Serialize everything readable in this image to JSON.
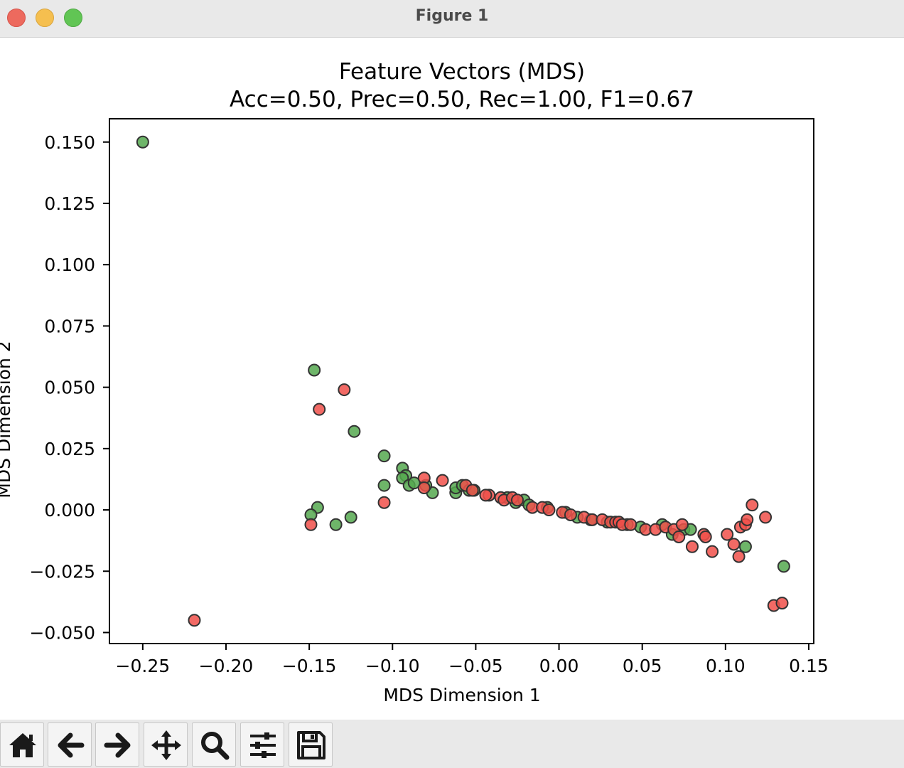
{
  "window": {
    "title": "Figure 1"
  },
  "toolbar": {
    "buttons": [
      {
        "name": "home-button",
        "icon": "home-icon"
      },
      {
        "name": "back-button",
        "icon": "arrow-left-icon"
      },
      {
        "name": "forward-button",
        "icon": "arrow-right-icon"
      },
      {
        "name": "pan-button",
        "icon": "move-icon"
      },
      {
        "name": "zoom-button",
        "icon": "search-icon"
      },
      {
        "name": "configure-subplots-button",
        "icon": "sliders-icon"
      },
      {
        "name": "save-button",
        "icon": "save-icon"
      }
    ]
  },
  "chart_data": {
    "type": "scatter",
    "title": "Feature Vectors (MDS)",
    "subtitle": "Acc=0.50, Prec=0.50, Rec=1.00, F1=0.67",
    "xlabel": "MDS Dimension 1",
    "ylabel": "MDS Dimension 2",
    "xlim": [
      -0.27,
      0.153
    ],
    "ylim": [
      -0.0545,
      0.1595
    ],
    "xticks": [
      -0.25,
      -0.2,
      -0.15,
      -0.1,
      -0.05,
      0.0,
      0.05,
      0.1,
      0.15
    ],
    "xtick_labels": [
      "−0.25",
      "−0.20",
      "−0.15",
      "−0.10",
      "−0.05",
      "0.00",
      "0.05",
      "0.10",
      "0.15"
    ],
    "yticks": [
      -0.05,
      -0.025,
      0.0,
      0.025,
      0.05,
      0.075,
      0.1,
      0.125,
      0.15
    ],
    "ytick_labels": [
      "−0.050",
      "−0.025",
      "0.000",
      "0.025",
      "0.050",
      "0.075",
      "0.100",
      "0.125",
      "0.150"
    ],
    "grid": false,
    "colors": {
      "green": "#55a84f",
      "red": "#f0504a",
      "edge": "#333333"
    },
    "series": [
      {
        "color": "green",
        "points": [
          [
            -0.25,
            0.15
          ],
          [
            -0.147,
            0.057
          ],
          [
            -0.123,
            0.032
          ],
          [
            -0.105,
            0.022
          ],
          [
            -0.094,
            0.017
          ],
          [
            -0.092,
            0.014
          ],
          [
            -0.094,
            0.013
          ],
          [
            -0.09,
            0.01
          ],
          [
            -0.087,
            0.011
          ],
          [
            -0.105,
            0.01
          ],
          [
            -0.076,
            0.007
          ],
          [
            -0.08,
            0.01
          ],
          [
            -0.062,
            0.007
          ],
          [
            -0.062,
            0.009
          ],
          [
            -0.058,
            0.01
          ],
          [
            -0.054,
            0.008
          ],
          [
            -0.051,
            0.008
          ],
          [
            -0.031,
            0.005
          ],
          [
            -0.026,
            0.003
          ],
          [
            -0.021,
            0.004
          ],
          [
            -0.018,
            0.002
          ],
          [
            -0.007,
            0.001
          ],
          [
            0.004,
            -0.001
          ],
          [
            0.011,
            -0.003
          ],
          [
            0.019,
            -0.004
          ],
          [
            0.029,
            -0.005
          ],
          [
            0.041,
            -0.006
          ],
          [
            0.049,
            -0.007
          ],
          [
            0.062,
            -0.006
          ],
          [
            0.068,
            -0.01
          ],
          [
            0.075,
            -0.008
          ],
          [
            0.079,
            -0.008
          ],
          [
            -0.145,
            0.001
          ],
          [
            -0.149,
            -0.002
          ],
          [
            -0.134,
            -0.006
          ],
          [
            -0.125,
            -0.003
          ],
          [
            0.112,
            -0.015
          ],
          [
            0.135,
            -0.023
          ]
        ]
      },
      {
        "color": "red",
        "points": [
          [
            -0.219,
            -0.045
          ],
          [
            -0.144,
            0.041
          ],
          [
            -0.129,
            0.049
          ],
          [
            -0.105,
            0.003
          ],
          [
            -0.149,
            -0.006
          ],
          [
            -0.081,
            0.013
          ],
          [
            -0.081,
            0.009
          ],
          [
            -0.07,
            0.012
          ],
          [
            -0.056,
            0.01
          ],
          [
            -0.052,
            0.008
          ],
          [
            -0.042,
            0.006
          ],
          [
            -0.044,
            0.006
          ],
          [
            -0.035,
            0.005
          ],
          [
            -0.033,
            0.004
          ],
          [
            -0.028,
            0.005
          ],
          [
            -0.025,
            0.004
          ],
          [
            -0.016,
            0.001
          ],
          [
            -0.01,
            0.001
          ],
          [
            -0.006,
            0.0
          ],
          [
            0.002,
            -0.001
          ],
          [
            0.007,
            -0.002
          ],
          [
            0.015,
            -0.003
          ],
          [
            0.02,
            -0.004
          ],
          [
            0.026,
            -0.004
          ],
          [
            0.031,
            -0.005
          ],
          [
            0.034,
            -0.005
          ],
          [
            0.036,
            -0.005
          ],
          [
            0.038,
            -0.006
          ],
          [
            0.043,
            -0.006
          ],
          [
            0.052,
            -0.008
          ],
          [
            0.058,
            -0.008
          ],
          [
            0.064,
            -0.007
          ],
          [
            0.069,
            -0.008
          ],
          [
            0.072,
            -0.011
          ],
          [
            0.08,
            -0.015
          ],
          [
            0.087,
            -0.01
          ],
          [
            0.088,
            -0.011
          ],
          [
            0.092,
            -0.017
          ],
          [
            0.101,
            -0.01
          ],
          [
            0.105,
            -0.014
          ],
          [
            0.108,
            -0.019
          ],
          [
            0.109,
            -0.007
          ],
          [
            0.112,
            -0.006
          ],
          [
            0.113,
            -0.004
          ],
          [
            0.116,
            0.002
          ],
          [
            0.124,
            -0.003
          ],
          [
            0.129,
            -0.039
          ],
          [
            0.134,
            -0.038
          ],
          [
            0.074,
            -0.006
          ]
        ]
      }
    ]
  }
}
